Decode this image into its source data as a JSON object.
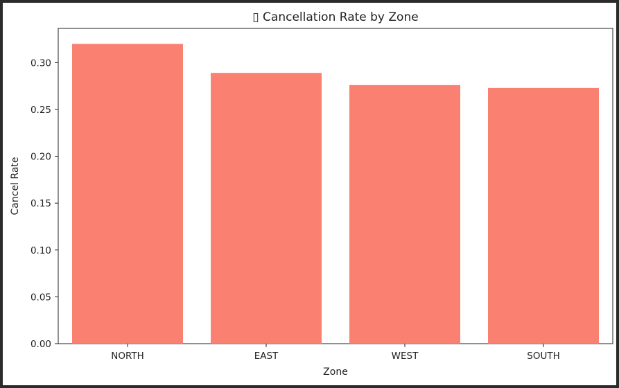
{
  "page": {
    "cropped_header_text": "                                              "
  },
  "chart_data": {
    "type": "bar",
    "title": "▯ Cancellation Rate by Zone",
    "xlabel": "Zone",
    "ylabel": "Cancel Rate",
    "categories": [
      "NORTH",
      "EAST",
      "WEST",
      "SOUTH"
    ],
    "values": [
      0.32,
      0.289,
      0.276,
      0.273
    ],
    "ylim": [
      0.0,
      0.3365
    ],
    "yticks": [
      "0.00",
      "0.05",
      "0.10",
      "0.15",
      "0.20",
      "0.25",
      "0.30"
    ],
    "bar_color": "#fa8072",
    "axis_color": "#222222",
    "grid": false,
    "legend": "none"
  }
}
